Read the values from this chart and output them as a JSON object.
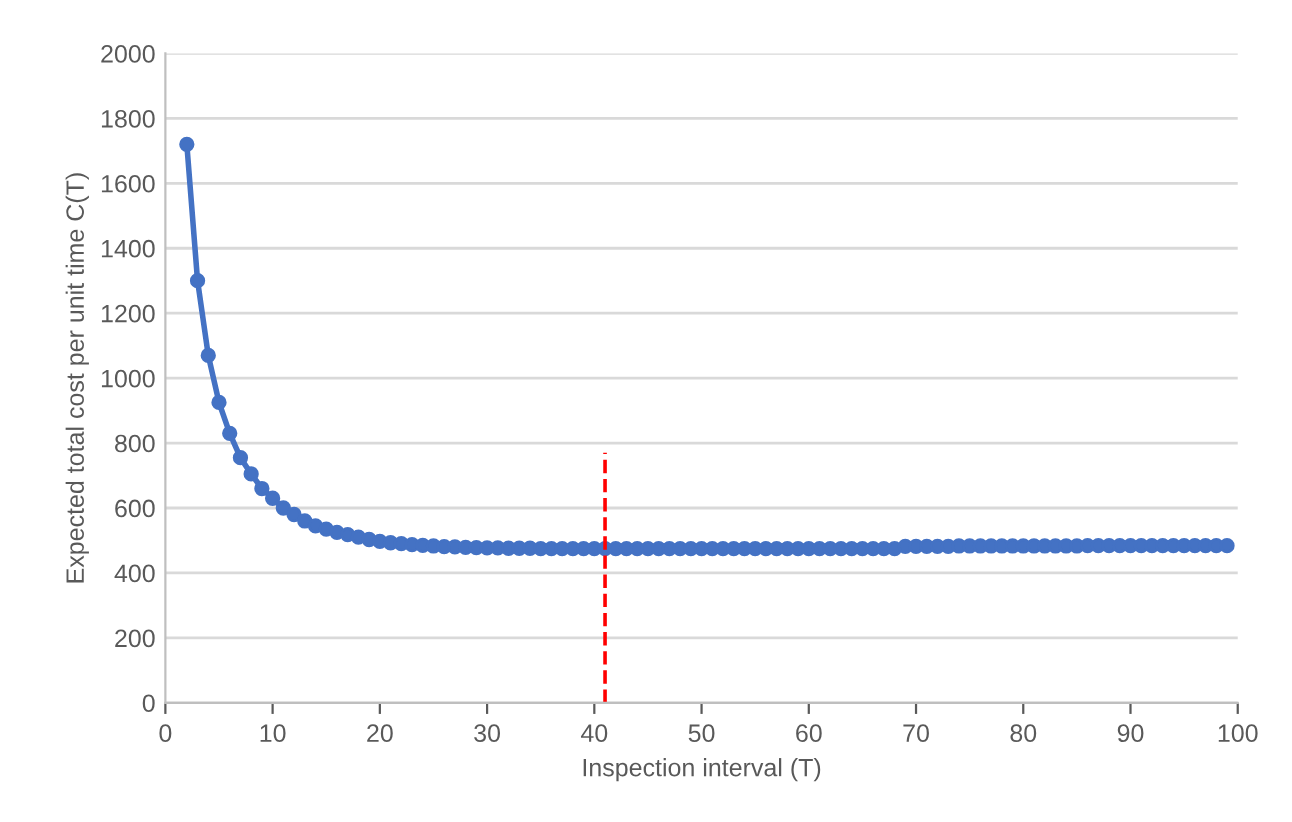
{
  "chart_data": {
    "type": "line",
    "xlabel": "Inspection interval (T)",
    "ylabel": "Expected total cost per unit time C(T)",
    "x": [
      2,
      3,
      4,
      5,
      6,
      7,
      8,
      9,
      10,
      11,
      12,
      13,
      14,
      15,
      16,
      17,
      18,
      19,
      20,
      21,
      22,
      23,
      24,
      25,
      26,
      27,
      28,
      29,
      30,
      31,
      32,
      33,
      34,
      35,
      36,
      37,
      38,
      39,
      40,
      41,
      42,
      43,
      44,
      45,
      46,
      47,
      48,
      49,
      50,
      51,
      52,
      53,
      54,
      55,
      56,
      57,
      58,
      59,
      60,
      61,
      62,
      63,
      64,
      65,
      66,
      67,
      68,
      69,
      70,
      71,
      72,
      73,
      74,
      75,
      76,
      77,
      78,
      79,
      80,
      81,
      82,
      83,
      84,
      85,
      86,
      87,
      88,
      89,
      90,
      91,
      92,
      93,
      94,
      95,
      96,
      97,
      98,
      99
    ],
    "series": [
      {
        "color": "#4472c4",
        "values": [
          1720,
          1300,
          1070,
          925,
          830,
          755,
          705,
          660,
          630,
          600,
          580,
          560,
          545,
          535,
          525,
          518,
          510,
          503,
          497,
          493,
          490,
          487,
          485,
          483,
          481,
          480,
          479,
          478,
          477,
          477,
          476,
          476,
          476,
          475,
          475,
          475,
          475,
          475,
          475,
          475,
          475,
          475,
          475,
          475,
          475,
          475,
          475,
          475,
          475,
          475,
          475,
          475,
          475,
          475,
          475,
          475,
          475,
          475,
          475,
          475,
          475,
          475,
          475,
          475,
          475,
          475,
          475,
          482,
          482,
          482,
          482,
          482,
          483,
          483,
          483,
          483,
          483,
          483,
          483,
          483,
          483,
          483,
          483,
          483,
          484,
          484,
          484,
          484,
          484,
          484,
          484,
          484,
          484,
          484,
          484,
          484,
          484,
          484
        ]
      }
    ],
    "xlim": [
      0,
      100
    ],
    "xticks": [
      0,
      10,
      20,
      30,
      40,
      50,
      60,
      70,
      80,
      90,
      100
    ],
    "ylim": [
      0,
      2000
    ],
    "yticks": [
      0,
      200,
      400,
      600,
      800,
      1000,
      1200,
      1400,
      1600,
      1800,
      2000
    ],
    "ref_lines": [
      {
        "axis": "x",
        "value": 41,
        "color": "#ff0000",
        "line_style": "dashed"
      }
    ],
    "grid": "y",
    "marker": "circle",
    "line_style": "solid"
  }
}
